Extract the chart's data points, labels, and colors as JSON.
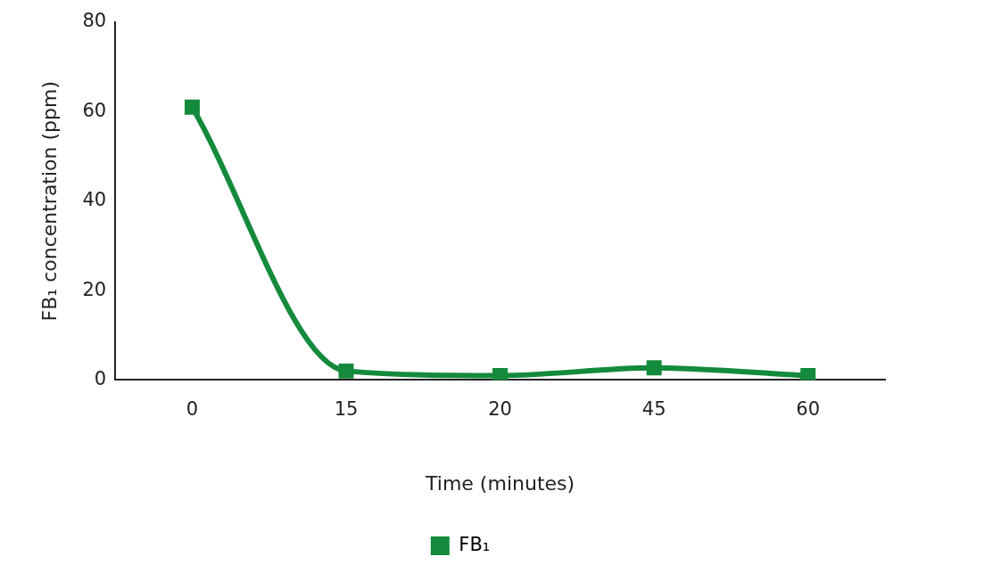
{
  "chart_data": {
    "type": "line",
    "xlabel": "Time (minutes)",
    "ylabel": "FB₁ concentration (ppm)",
    "categories": [
      "0",
      "15",
      "20",
      "45",
      "60"
    ],
    "series": [
      {
        "name": "FB₁",
        "color": "#138a3c",
        "values": [
          61,
          2,
          1,
          2.7,
          1
        ]
      }
    ],
    "ylim": [
      0,
      80
    ],
    "yticks": [
      0,
      20,
      40,
      60,
      80
    ],
    "grid": false,
    "legend": "bottom",
    "marker": "square",
    "line_style": "solid"
  }
}
